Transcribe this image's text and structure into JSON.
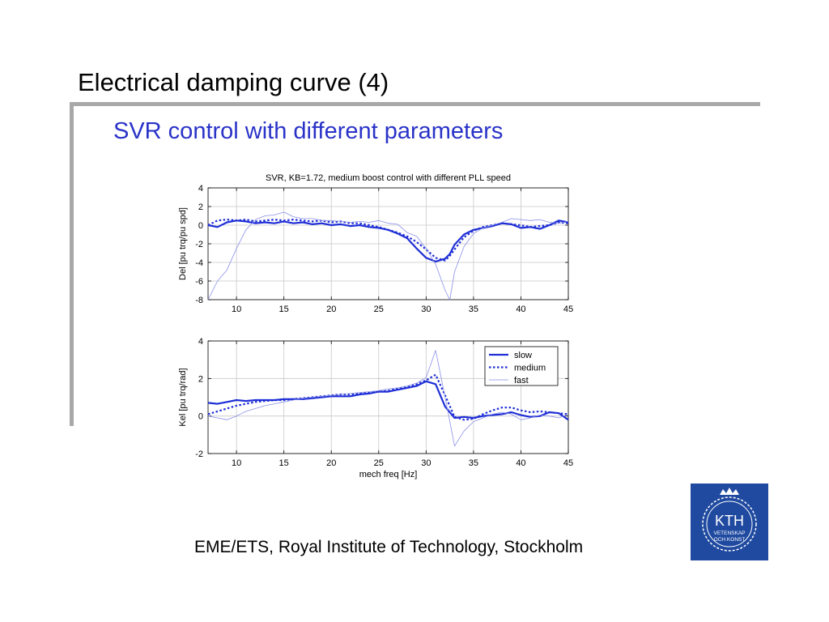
{
  "slide": {
    "title": "Electrical damping curve (4)",
    "subtitle": "SVR control with different parameters",
    "footer": "EME/ETS, Royal Institute of Technology, Stockholm",
    "logo": {
      "name": "KTH",
      "lines": [
        "VETENSKAP",
        "OCH KONST"
      ],
      "color": "#1f4aa0"
    }
  },
  "colors": {
    "series": "#1f2fd6",
    "fast": "#8a90e8",
    "grid": "#c8c8c8",
    "subtitle": "#2a33c8"
  },
  "chart_data": [
    {
      "type": "line",
      "title": "SVR, KB=1.72, medium boost control with different PLL speed",
      "xlabel": "",
      "ylabel": "Del [pu trq/pu spd]",
      "xlim": [
        7,
        45
      ],
      "ylim": [
        -8,
        4
      ],
      "xticks": [
        10,
        15,
        20,
        25,
        30,
        35,
        40,
        45
      ],
      "yticks": [
        -8,
        -6,
        -4,
        -2,
        0,
        2,
        4
      ],
      "grid": true,
      "series": [
        {
          "name": "slow",
          "x": [
            7,
            8,
            9,
            10,
            11,
            12,
            13,
            14,
            15,
            16,
            17,
            18,
            19,
            20,
            21,
            22,
            23,
            24,
            25,
            26,
            27,
            28,
            29,
            30,
            31,
            32,
            32.5,
            33,
            34,
            35,
            36,
            37,
            38,
            39,
            40,
            41,
            42,
            43,
            44,
            45
          ],
          "y": [
            0,
            -0.2,
            0.3,
            0.5,
            0.4,
            0.2,
            0.3,
            0.2,
            0.4,
            0.2,
            0.3,
            0.1,
            0.2,
            0,
            0.1,
            -0.1,
            0,
            -0.2,
            -0.3,
            -0.5,
            -0.9,
            -1.4,
            -2.5,
            -3.5,
            -3.9,
            -3.6,
            -3.1,
            -2.1,
            -1.0,
            -0.5,
            -0.3,
            -0.1,
            0.2,
            0.1,
            -0.3,
            -0.2,
            -0.4,
            0,
            0.5,
            0.3
          ]
        },
        {
          "name": "medium",
          "x": [
            7,
            8,
            9,
            10,
            11,
            12,
            13,
            14,
            15,
            16,
            17,
            18,
            19,
            20,
            21,
            22,
            23,
            24,
            25,
            26,
            27,
            28,
            29,
            30,
            31,
            32,
            32.5,
            33,
            34,
            35,
            36,
            37,
            38,
            39,
            40,
            41,
            42,
            43,
            44,
            45
          ],
          "y": [
            0,
            0.5,
            0.6,
            0.5,
            0.6,
            0.4,
            0.5,
            0.6,
            0.5,
            0.6,
            0.5,
            0.4,
            0.5,
            0.3,
            0.4,
            0.2,
            0.2,
            0,
            -0.2,
            -0.5,
            -0.8,
            -1.2,
            -1.8,
            -2.6,
            -3.5,
            -3.8,
            -3.3,
            -2.6,
            -1.3,
            -0.6,
            -0.2,
            0,
            0.2,
            0.1,
            0,
            -0.2,
            -0.1,
            0,
            0.3,
            0.2
          ]
        },
        {
          "name": "fast",
          "x": [
            7,
            8,
            9,
            10,
            11,
            12,
            13,
            14,
            15,
            16,
            17,
            18,
            19,
            20,
            21,
            22,
            23,
            24,
            25,
            26,
            27,
            28,
            29,
            30,
            31,
            32,
            32.5,
            33,
            34,
            35,
            36,
            37,
            38,
            39,
            40,
            41,
            42,
            43,
            44,
            45
          ],
          "y": [
            -8,
            -6,
            -4.8,
            -2.5,
            -0.5,
            0.6,
            1,
            1.1,
            1.4,
            0.9,
            0.7,
            0.7,
            0.5,
            0.5,
            0.4,
            0.3,
            0.4,
            0.3,
            0.5,
            0.2,
            0.1,
            -0.8,
            -1.2,
            -2.5,
            -4.2,
            -7,
            -8,
            -5,
            -2.3,
            -0.9,
            -0.3,
            0,
            0.3,
            0.7,
            0.6,
            0.5,
            0.6,
            0.3,
            0.2,
            0.4
          ]
        }
      ]
    },
    {
      "type": "line",
      "title": "",
      "xlabel": "mech freq [Hz]",
      "ylabel": "Kel [pu trq/rad]",
      "xlim": [
        7,
        45
      ],
      "ylim": [
        -2,
        4
      ],
      "xticks": [
        10,
        15,
        20,
        25,
        30,
        35,
        40,
        45
      ],
      "yticks": [
        -2,
        0,
        2,
        4
      ],
      "grid": true,
      "legend": "top-right",
      "series": [
        {
          "name": "slow",
          "x": [
            7,
            8,
            9,
            10,
            11,
            12,
            13,
            14,
            15,
            16,
            17,
            18,
            19,
            20,
            21,
            22,
            23,
            24,
            25,
            26,
            27,
            28,
            29,
            30,
            31,
            32,
            33,
            34,
            35,
            36,
            37,
            38,
            39,
            40,
            41,
            42,
            43,
            44,
            45
          ],
          "y": [
            0.7,
            0.65,
            0.75,
            0.85,
            0.8,
            0.85,
            0.85,
            0.85,
            0.9,
            0.9,
            0.9,
            0.95,
            1.0,
            1.05,
            1.05,
            1.05,
            1.15,
            1.2,
            1.3,
            1.3,
            1.4,
            1.5,
            1.6,
            1.85,
            1.7,
            0.5,
            -0.1,
            -0.05,
            -0.1,
            0.0,
            0.05,
            0.1,
            0.2,
            0.05,
            -0.05,
            0.0,
            0.2,
            0.15,
            -0.2
          ]
        },
        {
          "name": "medium",
          "x": [
            7,
            8,
            9,
            10,
            11,
            12,
            13,
            14,
            15,
            16,
            17,
            18,
            19,
            20,
            21,
            22,
            23,
            24,
            25,
            26,
            27,
            28,
            29,
            30,
            31,
            32,
            33,
            34,
            35,
            36,
            37,
            38,
            39,
            40,
            41,
            42,
            43,
            44,
            45
          ],
          "y": [
            0.1,
            0.25,
            0.4,
            0.55,
            0.65,
            0.75,
            0.8,
            0.85,
            0.85,
            0.9,
            0.95,
            1.0,
            1.05,
            1.1,
            1.15,
            1.15,
            1.2,
            1.25,
            1.3,
            1.35,
            1.45,
            1.55,
            1.7,
            1.9,
            2.2,
            1.1,
            -0.05,
            -0.2,
            -0.15,
            0.1,
            0.3,
            0.45,
            0.45,
            0.3,
            0.2,
            0.25,
            0.2,
            0.15,
            0.1
          ]
        },
        {
          "name": "fast",
          "x": [
            7,
            8,
            9,
            10,
            11,
            12,
            13,
            14,
            15,
            16,
            17,
            18,
            19,
            20,
            21,
            22,
            23,
            24,
            25,
            26,
            27,
            28,
            29,
            30,
            31,
            32,
            33,
            34,
            35,
            36,
            37,
            38,
            39,
            40,
            41,
            42,
            43,
            44,
            45
          ],
          "y": [
            0,
            -0.1,
            -0.2,
            0.0,
            0.25,
            0.4,
            0.55,
            0.65,
            0.75,
            0.85,
            0.95,
            1.0,
            1.05,
            1.1,
            1.15,
            1.2,
            1.25,
            1.3,
            1.35,
            1.45,
            1.5,
            1.6,
            1.75,
            2.05,
            3.5,
            1.0,
            -1.6,
            -0.8,
            -0.3,
            -0.1,
            0.1,
            0.2,
            0.1,
            -0.2,
            -0.1,
            0.05,
            0.0,
            -0.1,
            0.1
          ]
        }
      ]
    }
  ]
}
